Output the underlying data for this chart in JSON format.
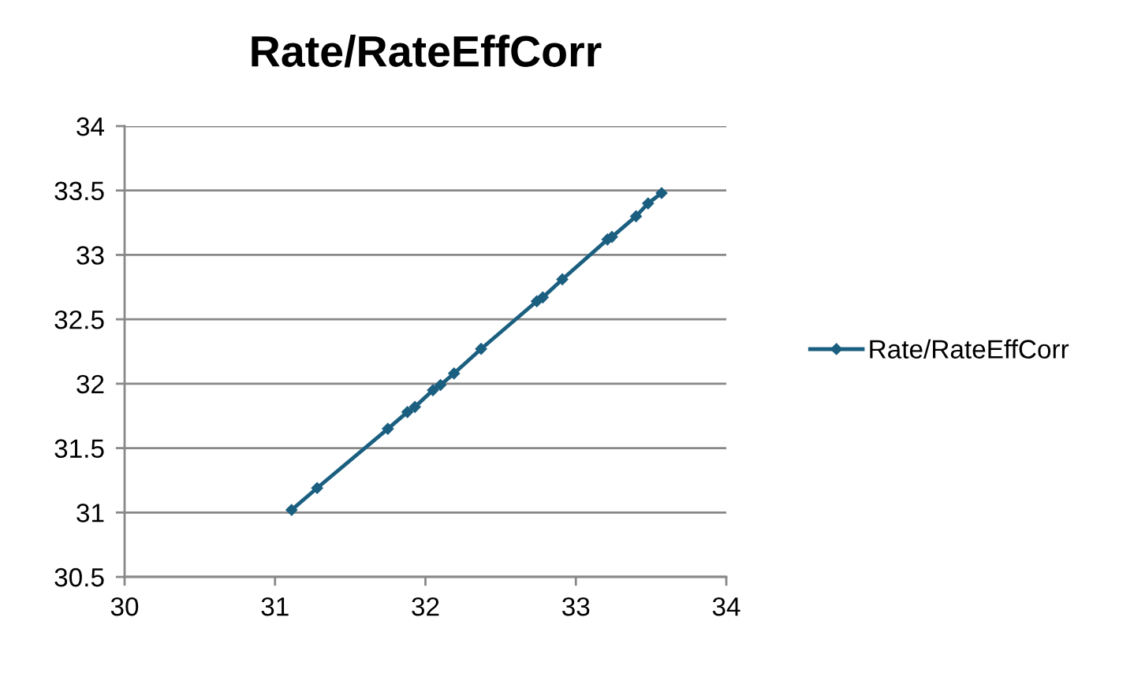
{
  "chart_data": {
    "type": "line",
    "title": "Rate/RateEffCorr",
    "x": [
      31.11,
      31.28,
      31.75,
      31.88,
      31.93,
      32.05,
      32.1,
      32.19,
      32.37,
      32.74,
      32.78,
      32.91,
      33.21,
      33.24,
      33.4,
      33.48,
      33.57
    ],
    "series": [
      {
        "name": "Rate/RateEffCorr",
        "color": "#1b5f80",
        "values": [
          31.02,
          31.19,
          31.65,
          31.78,
          31.82,
          31.95,
          31.99,
          32.08,
          32.27,
          32.64,
          32.67,
          32.81,
          33.12,
          33.14,
          33.3,
          33.4,
          33.48
        ]
      }
    ],
    "xlim": [
      30,
      34
    ],
    "xticks": [
      30,
      31,
      32,
      33,
      34
    ],
    "ylim": [
      30.5,
      34
    ],
    "yticks": [
      30.5,
      31,
      31.5,
      32,
      32.5,
      33,
      33.5,
      34
    ],
    "grid": "y",
    "legend": "right",
    "marker": "diamond",
    "line_style": "solid"
  }
}
